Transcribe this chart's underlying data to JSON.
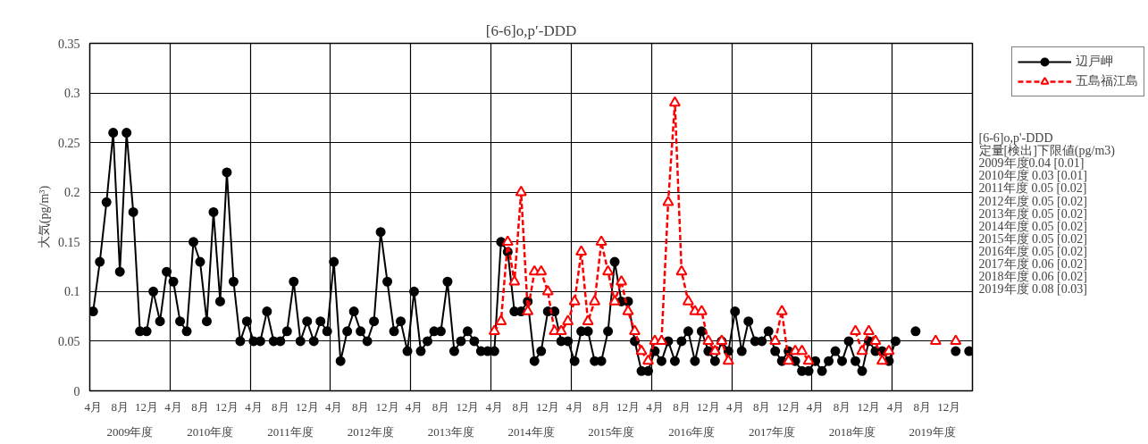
{
  "chart_data": {
    "type": "line",
    "title": "[6-6]o,p′-DDD",
    "ylabel": "大気(pg/m³)",
    "categories": [
      "4月",
      null,
      null,
      null,
      "8月",
      null,
      null,
      null,
      "12月",
      null,
      null,
      null,
      "4月",
      null,
      null,
      null,
      "8月",
      null,
      null,
      null,
      "12月",
      null,
      null,
      null,
      "4月",
      null,
      null,
      null,
      "8月",
      null,
      null,
      null,
      "12月",
      null,
      null,
      null,
      "4月",
      null,
      null,
      null,
      "8月",
      null,
      null,
      null,
      "12月",
      null,
      null,
      null,
      "4月",
      null,
      null,
      null,
      "8月",
      null,
      null,
      null,
      "12月",
      null,
      null,
      null,
      "4月",
      null,
      null,
      null,
      "8月",
      null,
      null,
      null,
      "12月",
      null,
      null,
      null,
      "4月",
      null,
      null,
      null,
      "8月",
      null,
      null,
      null,
      "12月",
      null,
      null,
      null,
      "4月",
      null,
      null,
      null,
      "8月",
      null,
      null,
      null,
      "12月",
      null,
      null,
      null,
      "4月",
      null,
      null,
      null,
      "8月",
      null,
      null,
      null,
      "12月",
      null,
      null,
      null,
      "4月",
      null,
      null,
      null,
      "8月",
      null,
      null,
      null,
      "12月",
      null,
      null,
      null,
      "4月",
      null,
      null,
      null,
      "8月",
      null,
      null,
      null,
      "12月",
      null,
      null,
      null
    ],
    "series": [
      {
        "name": "辺戸岬",
        "color": "#000000",
        "marker": "circle",
        "line_style": "solid",
        "values": [
          0.08,
          0.13,
          0.19,
          0.26,
          0.12,
          0.26,
          0.18,
          0.06,
          0.06,
          0.1,
          0.07,
          0.12,
          0.11,
          0.07,
          0.06,
          0.15,
          0.13,
          0.07,
          0.18,
          0.09,
          0.22,
          0.11,
          0.05,
          0.07,
          0.05,
          0.05,
          0.08,
          0.05,
          0.05,
          0.06,
          0.11,
          0.05,
          0.07,
          0.05,
          0.07,
          0.06,
          0.13,
          0.03,
          0.06,
          0.08,
          0.06,
          0.05,
          0.07,
          0.16,
          0.11,
          0.06,
          0.07,
          0.04,
          0.1,
          0.04,
          0.05,
          0.06,
          0.06,
          0.11,
          0.04,
          0.05,
          0.06,
          0.05,
          0.04,
          0.04,
          0.04,
          0.15,
          0.14,
          0.08,
          0.08,
          0.09,
          0.03,
          0.04,
          0.08,
          0.08,
          0.05,
          0.05,
          0.03,
          0.06,
          0.06,
          0.03,
          0.03,
          0.06,
          0.13,
          0.09,
          0.09,
          0.05,
          0.02,
          0.02,
          0.04,
          0.03,
          0.05,
          0.03,
          0.05,
          0.06,
          0.03,
          0.06,
          0.04,
          0.03,
          0.05,
          0.04,
          0.08,
          0.04,
          0.07,
          0.05,
          0.05,
          0.06,
          0.04,
          0.03,
          0.04,
          0.03,
          0.02,
          0.02,
          0.03,
          0.02,
          0.03,
          0.04,
          0.03,
          0.05,
          0.03,
          0.02,
          0.05,
          0.04,
          0.04,
          0.03,
          0.05,
          null,
          null,
          0.06,
          null,
          null,
          null,
          null,
          null,
          0.04,
          null,
          0.04
        ]
      },
      {
        "name": "五島福江島",
        "color": "#ff0000",
        "marker": "triangle",
        "line_style": "dashed",
        "values": [
          null,
          null,
          null,
          null,
          null,
          null,
          null,
          null,
          null,
          null,
          null,
          null,
          null,
          null,
          null,
          null,
          null,
          null,
          null,
          null,
          null,
          null,
          null,
          null,
          null,
          null,
          null,
          null,
          null,
          null,
          null,
          null,
          null,
          null,
          null,
          null,
          null,
          null,
          null,
          null,
          null,
          null,
          null,
          null,
          null,
          null,
          null,
          null,
          null,
          null,
          null,
          null,
          null,
          null,
          null,
          null,
          null,
          null,
          null,
          null,
          0.06,
          0.07,
          0.15,
          0.11,
          0.2,
          0.08,
          0.12,
          0.12,
          0.1,
          0.06,
          0.06,
          0.07,
          0.09,
          0.14,
          0.07,
          0.09,
          0.15,
          0.12,
          0.09,
          0.11,
          0.08,
          0.06,
          0.04,
          0.03,
          0.05,
          0.05,
          0.19,
          0.29,
          0.12,
          0.09,
          0.08,
          0.08,
          0.05,
          0.04,
          0.05,
          0.03,
          null,
          null,
          null,
          null,
          null,
          null,
          0.05,
          0.08,
          0.03,
          0.04,
          0.04,
          0.03,
          null,
          null,
          null,
          null,
          null,
          null,
          0.06,
          0.04,
          0.06,
          0.05,
          0.03,
          0.04,
          null,
          null,
          null,
          null,
          null,
          null,
          0.05,
          null,
          null,
          0.05,
          null,
          null
        ]
      }
    ],
    "ylim": [
      0,
      0.35
    ],
    "yticks": [
      0,
      0.05,
      0.1,
      0.15,
      0.2,
      0.25,
      0.3,
      0.35
    ],
    "grid": true,
    "legend": "top right",
    "annotations": [
      {
        "text": "2009年度"
      },
      {
        "text": "2010年度"
      },
      {
        "text": "2011年度"
      },
      {
        "text": "2012年度"
      },
      {
        "text": "2013年度"
      },
      {
        "text": "2014年度"
      },
      {
        "text": "2015年度"
      },
      {
        "text": "2016年度"
      },
      {
        "text": "2017年度"
      },
      {
        "text": "2018年度"
      },
      {
        "text": "2019年度"
      },
      "[6-6]o,p'-DDD",
      "定量[検出]下限値(pg/m3)",
      "2009年度0.04 [0.01]",
      "2010年度 0.03 [0.01]",
      "2011年度 0.05 [0.02]",
      "2012年度 0.05 [0.02]",
      "2013年度 0.05 [0.02]",
      "2014年度 0.05 [0.02]",
      "2015年度 0.05 [0.02]",
      "2016年度 0.05 [0.02]",
      "2017年度 0.06 [0.02]",
      "2018年度 0.06 [0.02]",
      "2019年度 0.08 [0.03]"
    ]
  }
}
